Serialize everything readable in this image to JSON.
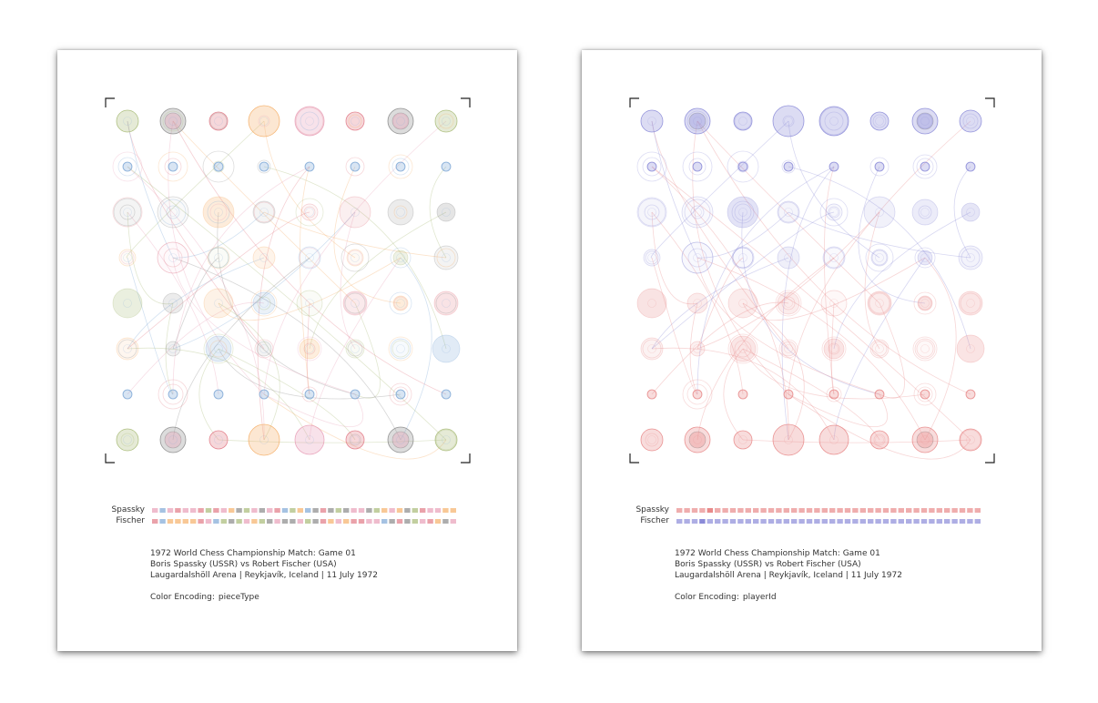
{
  "posters": [
    {
      "id": "piece-type",
      "encoding": "pieceType",
      "players": {
        "top": "Spassky",
        "bottom": "Fischer"
      },
      "match_title": "1972 World Chess Championship Match: Game 01",
      "players_line": "Boris Spassky (USSR) vs Robert Fischer (USA)",
      "venue_line": "Laugardalshöll Arena | Reykjavík, Iceland | 11 July 1972",
      "encoding_label": "Color Encoding:",
      "encoding_value": "pieceType"
    },
    {
      "id": "player-id",
      "encoding": "playerId",
      "players": {
        "top": "Spassky",
        "bottom": "Fischer"
      },
      "match_title": "1972 World Chess Championship Match: Game 01",
      "players_line": "Boris Spassky (USSR) vs Robert Fischer (USA)",
      "venue_line": "Laugardalshöll Arena | Reykjavík, Iceland | 11 July 1972",
      "encoding_label": "Color Encoding:",
      "encoding_value": "playerId"
    }
  ],
  "colors": {
    "pieceType": {
      "king": "#e8a0b8",
      "queen": "#f5b06a",
      "rook": "#a8bb78",
      "bishop": "#e17a86",
      "knight": "#8a8a8a",
      "pawn": "#7fa8d6"
    },
    "playerId": {
      "black": "#8b8bd8",
      "white": "#e88a8a"
    }
  },
  "board": {
    "back_rank": [
      "rook",
      "knight",
      "bishop",
      "queen",
      "king",
      "bishop",
      "knight",
      "rook"
    ]
  }
}
